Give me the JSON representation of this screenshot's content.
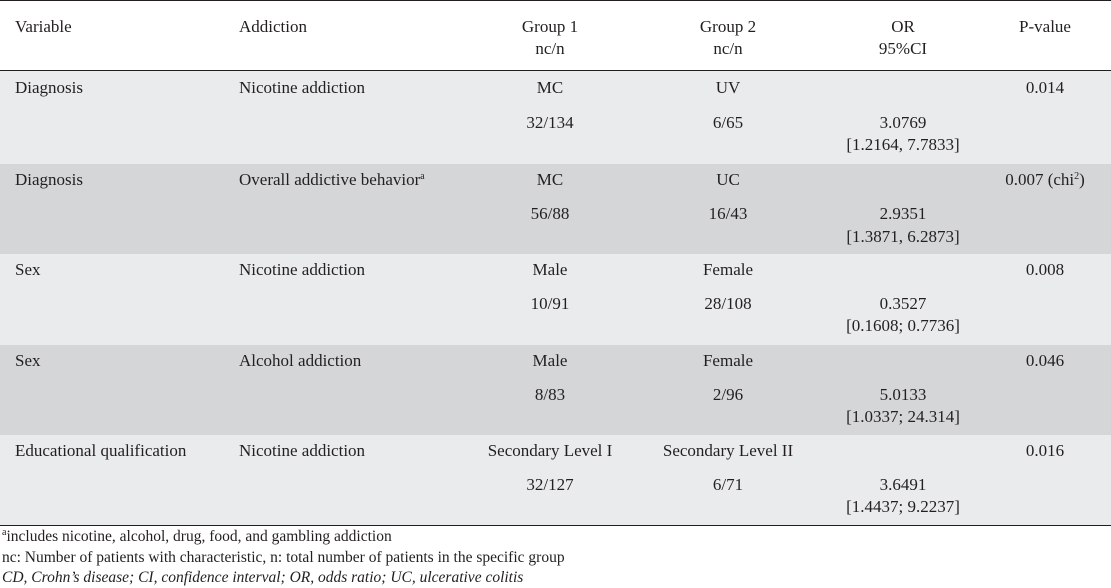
{
  "table": {
    "headers": {
      "variable": "Variable",
      "addiction": "Addiction",
      "group1": "Group 1",
      "group1_sub": "nc/n",
      "group2": "Group 2",
      "group2_sub": "nc/n",
      "or": "OR",
      "or_sub": "95%CI",
      "pvalue": "P-value"
    },
    "rows": [
      {
        "variable": "Diagnosis",
        "addiction": "Nicotine addiction",
        "addiction_sup": "",
        "g1_label": "MC",
        "g1_value": "32/134",
        "g2_label": "UV",
        "g2_value": "6/65",
        "or": "3.0769",
        "ci": "[1.2164, 7.7833]",
        "p": "0.014",
        "p_sup": "",
        "p_tail": ""
      },
      {
        "variable": "Diagnosis",
        "addiction": "Overall addictive behavior",
        "addiction_sup": "a",
        "g1_label": "MC",
        "g1_value": "56/88",
        "g2_label": "UC",
        "g2_value": "16/43",
        "or": "2.9351",
        "ci": "[1.3871, 6.2873]",
        "p": "0.007 (chi",
        "p_sup": "2",
        "p_tail": ")"
      },
      {
        "variable": "Sex",
        "addiction": "Nicotine addiction",
        "addiction_sup": "",
        "g1_label": "Male",
        "g1_value": "10/91",
        "g2_label": "Female",
        "g2_value": "28/108",
        "or": "0.3527",
        "ci": "[0.1608; 0.7736]",
        "p": "0.008",
        "p_sup": "",
        "p_tail": ""
      },
      {
        "variable": "Sex",
        "addiction": "Alcohol addiction",
        "addiction_sup": "",
        "g1_label": "Male",
        "g1_value": "8/83",
        "g2_label": "Female",
        "g2_value": "2/96",
        "or": "5.0133",
        "ci": "[1.0337; 24.314]",
        "p": "0.046",
        "p_sup": "",
        "p_tail": ""
      },
      {
        "variable": "Educational qualification",
        "addiction": "Nicotine addiction",
        "addiction_sup": "",
        "g1_label": "Secondary Level I",
        "g1_value": "32/127",
        "g2_label": "Secondary Level II",
        "g2_value": "6/71",
        "or": "3.6491",
        "ci": "[1.4437; 9.2237]",
        "p": "0.016",
        "p_sup": "",
        "p_tail": ""
      }
    ]
  },
  "footnotes": {
    "a_marker": "a",
    "a_text": "includes nicotine, alcohol, drug, food, and gambling addiction",
    "abbrev_nc": "nc: Number of patients with characteristic, n: total number of patients in the specific group",
    "abbrev_other": "CD, Crohn’s disease; CI, confidence interval; OR, odds ratio; UC, ulcerative colitis"
  },
  "colors": {
    "row_light": "#eaebed",
    "row_dark": "#d5d6d8",
    "text": "#231f20"
  }
}
